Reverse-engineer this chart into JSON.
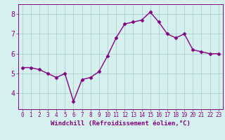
{
  "x": [
    0,
    1,
    2,
    3,
    4,
    5,
    6,
    7,
    8,
    9,
    10,
    11,
    12,
    13,
    14,
    15,
    16,
    17,
    18,
    19,
    20,
    21,
    22,
    23
  ],
  "y": [
    5.3,
    5.3,
    5.2,
    5.0,
    4.8,
    5.0,
    3.6,
    4.7,
    4.8,
    5.1,
    5.9,
    6.8,
    7.5,
    7.6,
    7.7,
    8.1,
    7.6,
    7.0,
    6.8,
    7.0,
    6.2,
    6.1,
    6.0,
    6.0
  ],
  "line_color": "#800080",
  "marker": "D",
  "marker_size": 2.5,
  "bg_color": "#d6f0f0",
  "grid_color": "#aacfcf",
  "xlabel": "Windchill (Refroidissement éolien,°C)",
  "xlabel_color": "#800080",
  "tick_color": "#800080",
  "spine_color": "#800080",
  "ylim": [
    3.2,
    8.5
  ],
  "yticks": [
    4,
    5,
    6,
    7,
    8
  ],
  "xlim": [
    -0.5,
    23.5
  ],
  "xtick_fontsize": 5.5,
  "ytick_fontsize": 7.0,
  "xlabel_fontsize": 6.5,
  "linewidth": 1.0
}
